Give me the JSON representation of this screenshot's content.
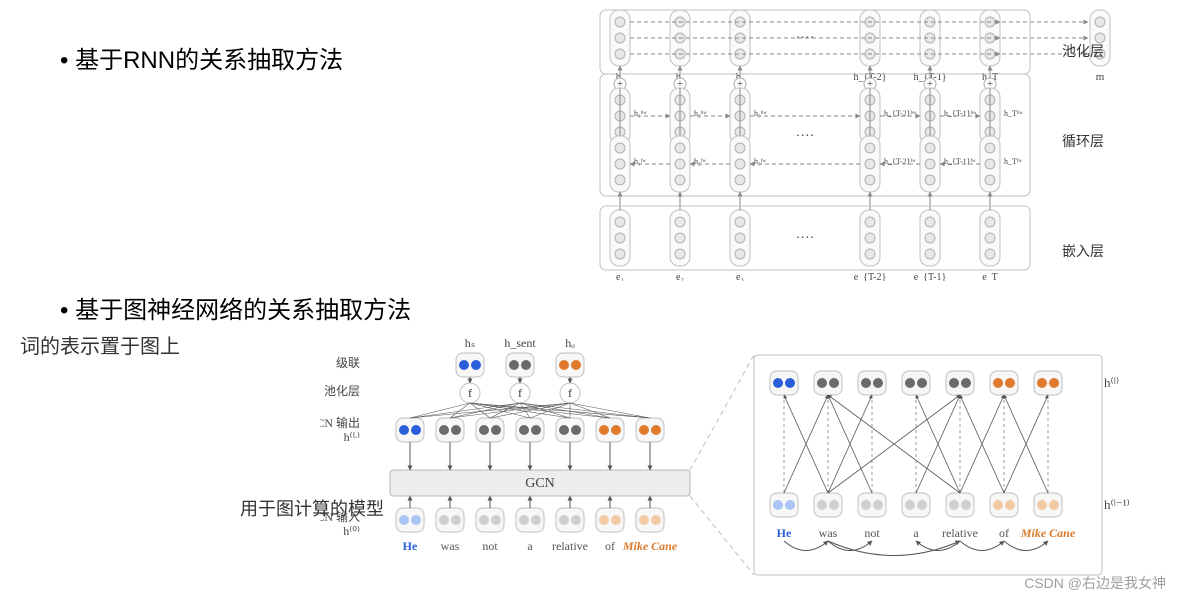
{
  "bullets": {
    "rnn": "• 基于RNN的关系抽取方法",
    "gcn": "• 基于图神经网络的关系抽取方法"
  },
  "handwriting": {
    "note1": "词的表示置于图上",
    "note2": "用于图计算的模型"
  },
  "watermark": "CSDN @右边是我女神",
  "rnn_diagram": {
    "layers": {
      "pool": "池化层",
      "recur": "循环层",
      "embed": "嵌入层"
    },
    "col_labels": [
      "h₁",
      "h₂",
      "h₃",
      "h_{T-2}",
      "h_{T-1}",
      "h_T"
    ],
    "embed_labels": [
      "e₁",
      "e₂",
      "e₃",
      "e_{T-2}",
      "e_{T-1}",
      "e_T"
    ],
    "m_label": "m",
    "ellipsis": "····",
    "node_fill": "#e8e8e8",
    "node_stroke": "#b0b0b0",
    "box_stroke": "#c0c0c0",
    "box_fill": "#fafafa",
    "arrow_color": "#888888",
    "hidden_fw": [
      "h₁ᶠʷ",
      "h₂ᶠʷ",
      "h₃ᶠʷ",
      "h_{T-2}ᶠʷ",
      "h_{T-1}ᶠʷ",
      "h_Tᶠʷ"
    ],
    "hidden_bw": [
      "h₁ᵇʷ",
      "h₂ᵇʷ",
      "h₃ᵇʷ",
      "h_{T-2}ᵇʷ",
      "h_{T-1}ᵇʷ",
      "h_Tᵇʷ"
    ]
  },
  "gcn_diagram": {
    "row_labels": {
      "cascade": "级联",
      "pool": "池化层",
      "out": "GCN 输出",
      "hL": "h⁽ᴸ⁾",
      "gcn_box": "GCN",
      "in": "GCN 输入",
      "h0": "h⁽⁰⁾"
    },
    "top_heads": [
      "hₛ",
      "h_sent",
      "hₒ"
    ],
    "tokens": [
      "He",
      "was",
      "not",
      "a",
      "relative",
      "of",
      "Mike Cane"
    ],
    "token_colors": [
      "#2b5fd9",
      "#555",
      "#555",
      "#555",
      "#555",
      "#555",
      "#d97a2b"
    ],
    "token_styles": [
      "bold",
      "normal",
      "normal",
      "normal",
      "normal",
      "normal",
      "italic bold"
    ],
    "f_label": "f",
    "right_labels": {
      "hl": "h⁽ˡ⁾",
      "hl1": "h⁽ˡ⁻¹⁾"
    },
    "colors": {
      "blue": "#2b5fd9",
      "blue_lt": "#a9c4f5",
      "gray": "#6b6b6b",
      "gray_lt": "#cfcfcf",
      "orange": "#e07b2e",
      "orange_lt": "#f3c9a3",
      "box_stroke": "#bfbfbf",
      "box_fill": "#f7f7f7",
      "gcn_box": "#ededed",
      "gcn_stroke": "#b8b8b8",
      "edge": "#555555"
    },
    "out_row": [
      "blue",
      "gray",
      "gray",
      "gray",
      "gray",
      "orange",
      "orange"
    ],
    "in_row": [
      "blue_lt",
      "gray_lt",
      "gray_lt",
      "gray_lt",
      "gray_lt",
      "orange_lt",
      "orange_lt"
    ],
    "right_top": [
      "blue",
      "gray",
      "gray",
      "gray",
      "gray",
      "orange",
      "orange"
    ],
    "right_bot": [
      "blue_lt",
      "gray_lt",
      "gray_lt",
      "gray_lt",
      "gray_lt",
      "orange_lt",
      "orange_lt"
    ],
    "head_colors": [
      [
        "blue",
        "blue"
      ],
      [
        "gray",
        "gray"
      ],
      [
        "orange",
        "orange"
      ]
    ],
    "deps": [
      [
        0,
        1
      ],
      [
        1,
        2
      ],
      [
        1,
        4
      ],
      [
        4,
        3
      ],
      [
        4,
        5
      ],
      [
        5,
        6
      ]
    ],
    "gcn_edges": [
      [
        0,
        1
      ],
      [
        1,
        0
      ],
      [
        1,
        2
      ],
      [
        2,
        1
      ],
      [
        1,
        4
      ],
      [
        4,
        1
      ],
      [
        4,
        3
      ],
      [
        3,
        4
      ],
      [
        4,
        5
      ],
      [
        5,
        4
      ],
      [
        5,
        6
      ],
      [
        6,
        5
      ]
    ]
  }
}
